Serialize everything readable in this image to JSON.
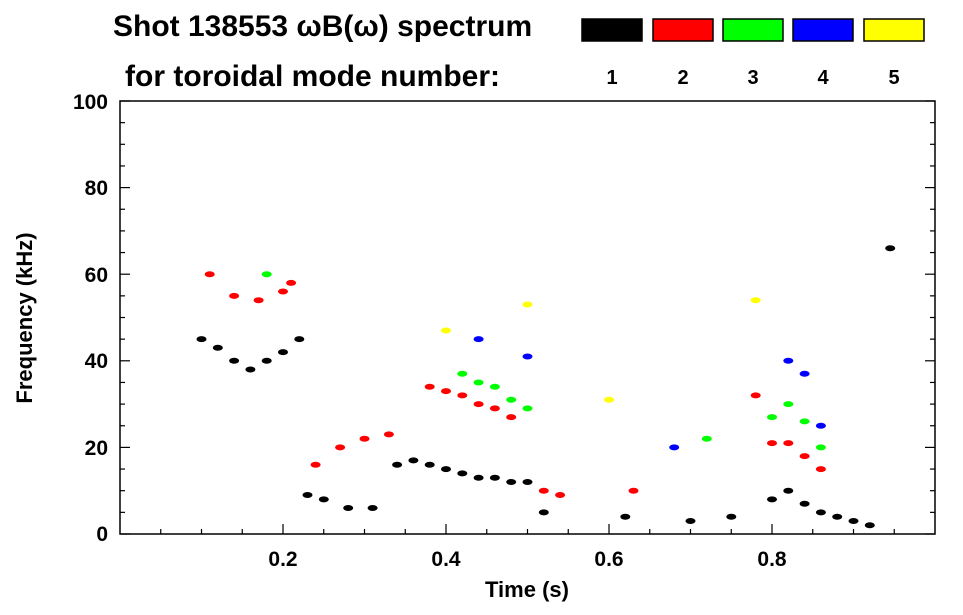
{
  "chart_data": {
    "type": "heatmap",
    "title_line1": "Shot 138553 ωB(ω) spectrum",
    "title_line2": "for toroidal mode number:",
    "xlabel": "Time (s)",
    "ylabel": "Frequency (kHz)",
    "xlim": [
      0.0,
      1.0
    ],
    "ylim": [
      0,
      100
    ],
    "x_ticks": [
      0.2,
      0.4,
      0.6,
      0.8
    ],
    "x_tick_labels": [
      "0.2",
      "0.4",
      "0.6",
      "0.8"
    ],
    "y_ticks": [
      0,
      20,
      40,
      60,
      80,
      100
    ],
    "y_tick_labels": [
      "0",
      "20",
      "40",
      "60",
      "80",
      "100"
    ],
    "legend": [
      {
        "label": "1",
        "color": "#000000"
      },
      {
        "label": "2",
        "color": "#ff0000"
      },
      {
        "label": "3",
        "color": "#00ff00"
      },
      {
        "label": "4",
        "color": "#0000ff"
      },
      {
        "label": "5",
        "color": "#ffff00"
      }
    ],
    "series": [
      {
        "name": "n=1",
        "color": "#000000",
        "points": [
          {
            "t": 0.1,
            "f": 45
          },
          {
            "t": 0.12,
            "f": 43
          },
          {
            "t": 0.14,
            "f": 40
          },
          {
            "t": 0.16,
            "f": 38
          },
          {
            "t": 0.18,
            "f": 40
          },
          {
            "t": 0.2,
            "f": 42
          },
          {
            "t": 0.22,
            "f": 45
          },
          {
            "t": 0.23,
            "f": 9
          },
          {
            "t": 0.25,
            "f": 8
          },
          {
            "t": 0.28,
            "f": 6
          },
          {
            "t": 0.31,
            "f": 6
          },
          {
            "t": 0.34,
            "f": 16
          },
          {
            "t": 0.36,
            "f": 17
          },
          {
            "t": 0.38,
            "f": 16
          },
          {
            "t": 0.4,
            "f": 15
          },
          {
            "t": 0.42,
            "f": 14
          },
          {
            "t": 0.44,
            "f": 13
          },
          {
            "t": 0.46,
            "f": 13
          },
          {
            "t": 0.48,
            "f": 12
          },
          {
            "t": 0.5,
            "f": 12
          },
          {
            "t": 0.52,
            "f": 5
          },
          {
            "t": 0.62,
            "f": 4
          },
          {
            "t": 0.7,
            "f": 3
          },
          {
            "t": 0.75,
            "f": 4
          },
          {
            "t": 0.8,
            "f": 8
          },
          {
            "t": 0.82,
            "f": 10
          },
          {
            "t": 0.84,
            "f": 7
          },
          {
            "t": 0.86,
            "f": 5
          },
          {
            "t": 0.88,
            "f": 4
          },
          {
            "t": 0.9,
            "f": 3
          },
          {
            "t": 0.92,
            "f": 2
          },
          {
            "t": 0.945,
            "f": 66
          }
        ]
      },
      {
        "name": "n=2",
        "color": "#ff0000",
        "points": [
          {
            "t": 0.11,
            "f": 60
          },
          {
            "t": 0.14,
            "f": 55
          },
          {
            "t": 0.17,
            "f": 54
          },
          {
            "t": 0.2,
            "f": 56
          },
          {
            "t": 0.21,
            "f": 58
          },
          {
            "t": 0.24,
            "f": 16
          },
          {
            "t": 0.27,
            "f": 20
          },
          {
            "t": 0.3,
            "f": 22
          },
          {
            "t": 0.33,
            "f": 23
          },
          {
            "t": 0.38,
            "f": 34
          },
          {
            "t": 0.4,
            "f": 33
          },
          {
            "t": 0.42,
            "f": 32
          },
          {
            "t": 0.44,
            "f": 30
          },
          {
            "t": 0.46,
            "f": 29
          },
          {
            "t": 0.48,
            "f": 27
          },
          {
            "t": 0.52,
            "f": 10
          },
          {
            "t": 0.54,
            "f": 9
          },
          {
            "t": 0.63,
            "f": 10
          },
          {
            "t": 0.78,
            "f": 32
          },
          {
            "t": 0.8,
            "f": 21
          },
          {
            "t": 0.82,
            "f": 21
          },
          {
            "t": 0.84,
            "f": 18
          },
          {
            "t": 0.86,
            "f": 15
          }
        ]
      },
      {
        "name": "n=3",
        "color": "#00ff00",
        "points": [
          {
            "t": 0.18,
            "f": 60
          },
          {
            "t": 0.42,
            "f": 37
          },
          {
            "t": 0.44,
            "f": 35
          },
          {
            "t": 0.46,
            "f": 34
          },
          {
            "t": 0.48,
            "f": 31
          },
          {
            "t": 0.5,
            "f": 29
          },
          {
            "t": 0.72,
            "f": 22
          },
          {
            "t": 0.8,
            "f": 27
          },
          {
            "t": 0.82,
            "f": 30
          },
          {
            "t": 0.84,
            "f": 26
          },
          {
            "t": 0.86,
            "f": 20
          }
        ]
      },
      {
        "name": "n=4",
        "color": "#0000ff",
        "points": [
          {
            "t": 0.44,
            "f": 45
          },
          {
            "t": 0.5,
            "f": 41
          },
          {
            "t": 0.68,
            "f": 20
          },
          {
            "t": 0.82,
            "f": 40
          },
          {
            "t": 0.84,
            "f": 37
          },
          {
            "t": 0.86,
            "f": 25
          }
        ]
      },
      {
        "name": "n=5",
        "color": "#ffff00",
        "points": [
          {
            "t": 0.4,
            "f": 47
          },
          {
            "t": 0.5,
            "f": 53
          },
          {
            "t": 0.6,
            "f": 31
          },
          {
            "t": 0.78,
            "f": 54
          }
        ]
      }
    ]
  }
}
